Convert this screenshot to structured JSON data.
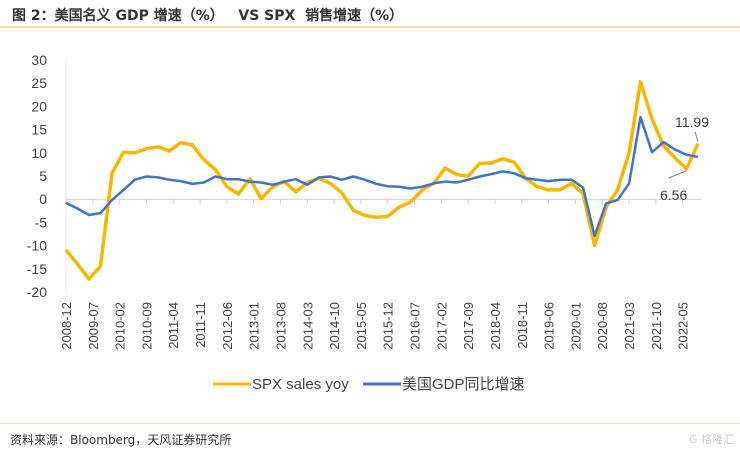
{
  "title": "图 2：美国名义 GDP 增速（%）   VS SPX  销售增速（%）",
  "source": "资料来源：Bloomberg，天风证券研究所",
  "watermark": "格隆汇",
  "chart_data": {
    "type": "line",
    "title": "",
    "xlabel": "",
    "ylabel": "",
    "ylim": [
      -20,
      30
    ],
    "yticks": [
      30,
      25,
      20,
      15,
      10,
      5,
      0,
      -5,
      -10,
      -15,
      -20
    ],
    "grid": false,
    "legend_position": "bottom",
    "x_start": "2008-12",
    "x_step_months": 3,
    "xtick_labels": [
      "2008-12",
      "2009-07",
      "2010-02",
      "2010-09",
      "2011-04",
      "2011-11",
      "2012-06",
      "2013-01",
      "2013-08",
      "2014-03",
      "2014-10",
      "2015-05",
      "2015-12",
      "2016-07",
      "2017-02",
      "2017-09",
      "2018-04",
      "2018-11",
      "2019-06",
      "2020-01",
      "2020-08",
      "2021-03",
      "2021-10",
      "2022-05"
    ],
    "series": [
      {
        "name": "SPX sales yoy",
        "color": "#f5b800",
        "values": [
          -10.9,
          -14,
          -17.2,
          -14.4,
          5.6,
          10.1,
          10,
          10.9,
          11.3,
          10.4,
          12.2,
          11.7,
          8.5,
          6.4,
          2.7,
          1.1,
          4.4,
          0.1,
          2.7,
          3.8,
          1.6,
          3.6,
          4.5,
          3.4,
          1.4,
          -2.4,
          -3.5,
          -3.9,
          -3.7,
          -1.7,
          -0.6,
          2,
          3.4,
          6.7,
          5.3,
          5,
          7.7,
          7.8,
          8.7,
          8,
          4.5,
          2.7,
          2,
          2,
          3.4,
          1.2,
          -10,
          -1.7,
          2,
          10,
          25.3,
          17.3,
          11.5,
          8.9,
          6.56,
          11.99
        ]
      },
      {
        "name": "美国GDP同比增速",
        "color": "#4472c4",
        "values": [
          -0.8,
          -2,
          -3.4,
          -3,
          -0.2,
          2,
          4.2,
          4.9,
          4.7,
          4.2,
          3.9,
          3.3,
          3.6,
          4.9,
          4.3,
          4.3,
          3.8,
          3.6,
          3.1,
          3.8,
          4.3,
          3.1,
          4.7,
          4.9,
          4.2,
          4.9,
          4.2,
          3.3,
          2.8,
          2.7,
          2.3,
          2.7,
          3.4,
          3.8,
          3.6,
          4.2,
          4.9,
          5.4,
          6,
          5.6,
          4.5,
          4.2,
          3.9,
          4.2,
          4.2,
          2.5,
          -7.9,
          -0.9,
          -0.2,
          3.4,
          17.7,
          10.1,
          12.3,
          10.7,
          9.6,
          9.1
        ]
      }
    ],
    "annotations": [
      "11.99",
      "6.56"
    ]
  }
}
